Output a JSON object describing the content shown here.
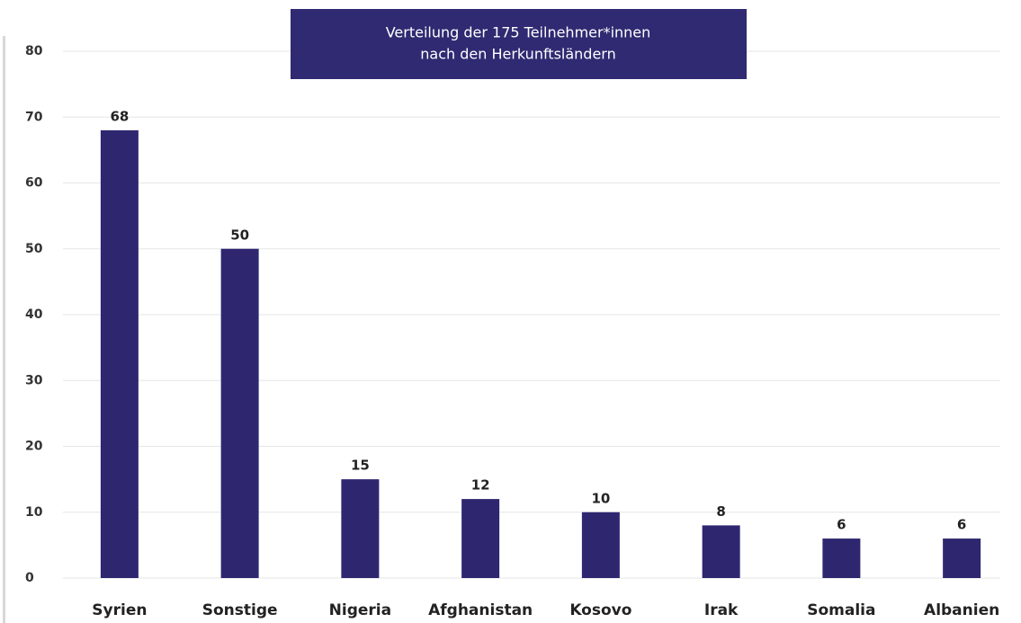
{
  "chart_data": {
    "type": "bar",
    "title": [
      "Verteilung der 175 Teilnehmer*innen",
      "nach den Herkunftsländern"
    ],
    "categories": [
      "Syrien",
      "Sonstige",
      "Nigeria",
      "Afghanistan",
      "Kosovo",
      "Irak",
      "Somalia",
      "Albanien"
    ],
    "values": [
      68,
      50,
      15,
      12,
      10,
      8,
      6,
      6
    ],
    "color": "#2e2770",
    "ylim": [
      0,
      80
    ],
    "yticks": [
      0,
      10,
      20,
      30,
      40,
      50,
      60,
      70,
      80
    ],
    "grid": true
  }
}
